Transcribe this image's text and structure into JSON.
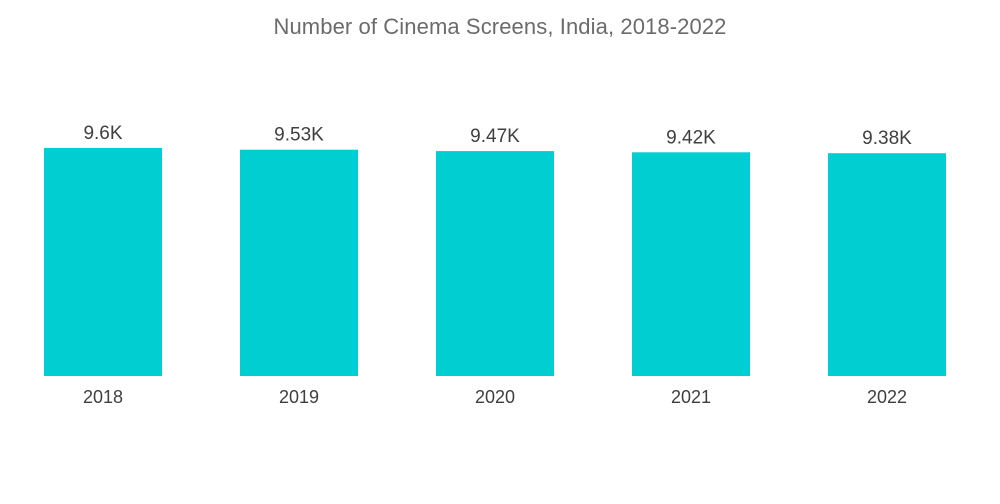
{
  "chart_data": {
    "type": "bar",
    "title": "Number of Cinema Screens, India, 2018-2022",
    "categories": [
      "2018",
      "2019",
      "2020",
      "2021",
      "2022"
    ],
    "values": [
      9600,
      9530,
      9470,
      9420,
      9380
    ],
    "value_labels": [
      "9.6K",
      "9.53K",
      "9.47K",
      "9.42K",
      "9.38K"
    ],
    "xlabel": "",
    "ylabel": "",
    "ylim": [
      0,
      9600
    ],
    "grid": false,
    "legend": "none",
    "bar_color": "#00CED1"
  }
}
